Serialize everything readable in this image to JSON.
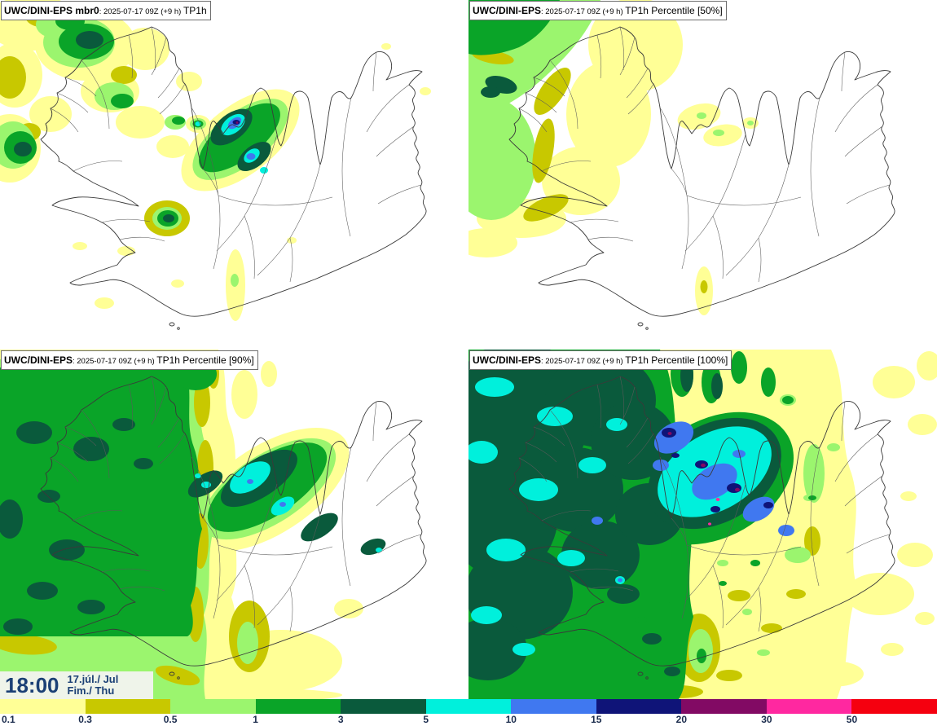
{
  "panels": [
    {
      "id": "member-0",
      "title": {
        "name": "UWC/DINI-EPS mbr0",
        "date": ": 2025-07-17 09Z (+9 h) ",
        "product": "TP1h"
      }
    },
    {
      "id": "percentile-50",
      "title": {
        "name": "UWC/DINI-EPS",
        "date": ": 2025-07-17 09Z (+9 h) ",
        "product": "TP1h Percentile [50%]"
      }
    },
    {
      "id": "percentile-90",
      "title": {
        "name": "UWC/DINI-EPS",
        "date": ": 2025-07-17 09Z (+9 h) ",
        "product": "TP1h Percentile [90%]"
      }
    },
    {
      "id": "percentile-100",
      "title": {
        "name": "UWC/DINI-EPS",
        "date": ": 2025-07-17 09Z (+9 h) ",
        "product": "TP1h Percentile [100%]"
      }
    }
  ],
  "timestamp": {
    "time": "18:00",
    "date_line1": "17.júl./ Jul",
    "date_line2": "Fim./ Thu"
  },
  "colorbar": {
    "stops": [
      {
        "value": "0.1",
        "color": "#FFFF96"
      },
      {
        "value": "0.3",
        "color": "#C8C800"
      },
      {
        "value": "0.5",
        "color": "#9BF56E"
      },
      {
        "value": "1",
        "color": "#0AA428"
      },
      {
        "value": "3",
        "color": "#0A5A3C"
      },
      {
        "value": "5",
        "color": "#00F0DC"
      },
      {
        "value": "10",
        "color": "#4078F0"
      },
      {
        "value": "15",
        "color": "#0F1478"
      },
      {
        "value": "20",
        "color": "#820A64"
      },
      {
        "value": "30",
        "color": "#FF28A0"
      },
      {
        "value": "50",
        "color": "#F5000F"
      }
    ],
    "label_color": "#1a2b4c"
  }
}
